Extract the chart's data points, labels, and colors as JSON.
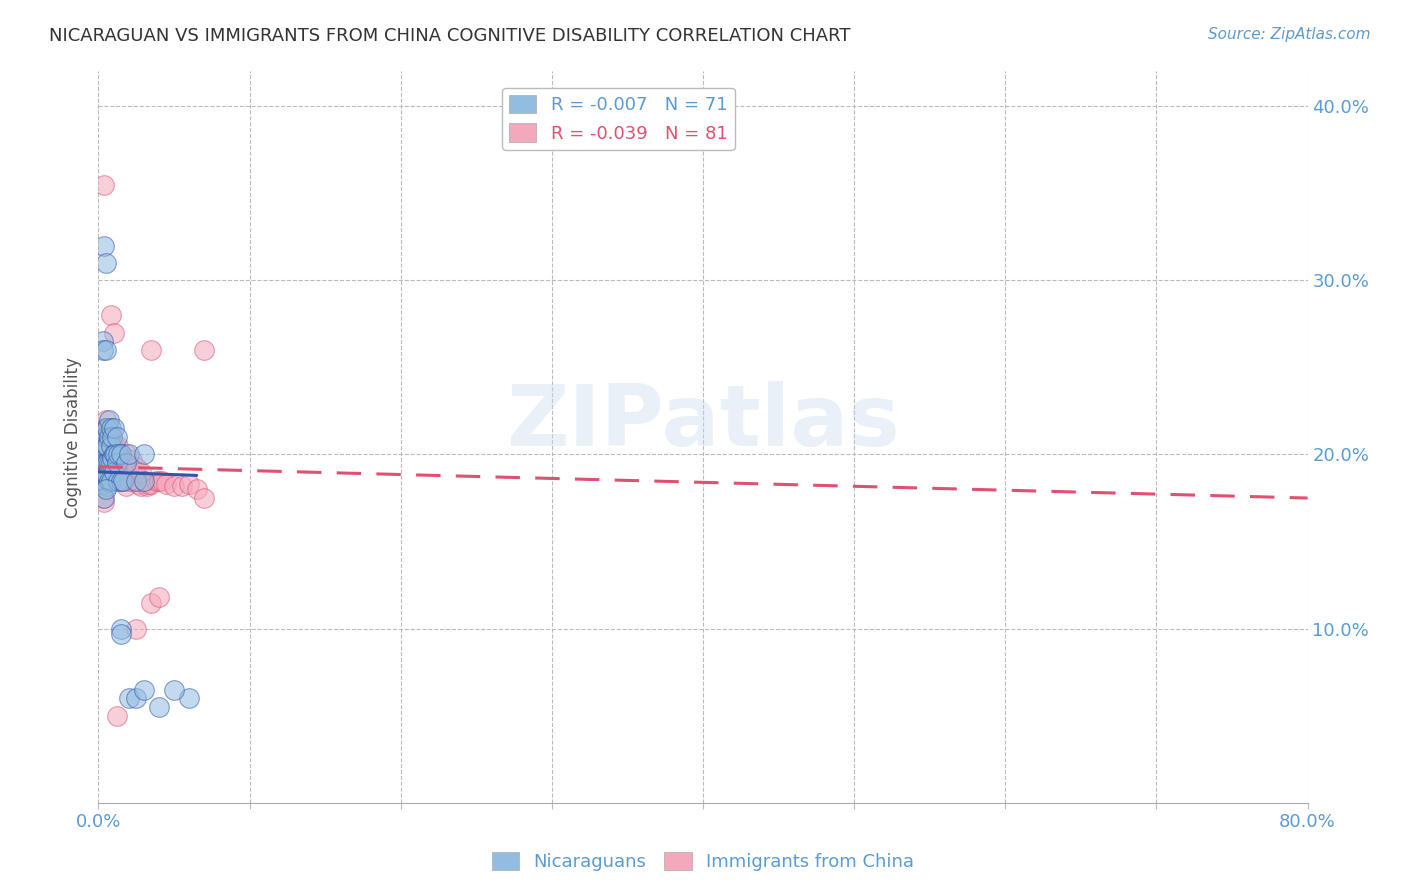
{
  "title": "NICARAGUAN VS IMMIGRANTS FROM CHINA COGNITIVE DISABILITY CORRELATION CHART",
  "source": "Source: ZipAtlas.com",
  "ylabel": "Cognitive Disability",
  "xlim": [
    0.0,
    0.8
  ],
  "ylim": [
    0.0,
    0.42
  ],
  "yticks": [
    0.1,
    0.2,
    0.3,
    0.4
  ],
  "ytick_labels": [
    "10.0%",
    "20.0%",
    "30.0%",
    "40.0%"
  ],
  "xtick_positions": [
    0.0,
    0.1,
    0.2,
    0.3,
    0.4,
    0.5,
    0.6,
    0.7,
    0.8
  ],
  "watermark": "ZIPatlas",
  "blue_color": "#92bce0",
  "pink_color": "#f4a8bb",
  "blue_line_color": "#3355aa",
  "pink_line_color": "#e05070",
  "axis_color": "#5b9bd5",
  "grid_color": "#bbbbbb",
  "title_color": "#333333",
  "blue_scatter": [
    [
      0.001,
      0.195
    ],
    [
      0.001,
      0.192
    ],
    [
      0.001,
      0.189
    ],
    [
      0.002,
      0.2
    ],
    [
      0.002,
      0.196
    ],
    [
      0.002,
      0.191
    ],
    [
      0.002,
      0.187
    ],
    [
      0.002,
      0.183
    ],
    [
      0.003,
      0.205
    ],
    [
      0.003,
      0.2
    ],
    [
      0.003,
      0.196
    ],
    [
      0.003,
      0.191
    ],
    [
      0.003,
      0.187
    ],
    [
      0.003,
      0.183
    ],
    [
      0.004,
      0.21
    ],
    [
      0.004,
      0.205
    ],
    [
      0.004,
      0.2
    ],
    [
      0.004,
      0.195
    ],
    [
      0.004,
      0.19
    ],
    [
      0.004,
      0.185
    ],
    [
      0.005,
      0.215
    ],
    [
      0.005,
      0.21
    ],
    [
      0.005,
      0.205
    ],
    [
      0.005,
      0.195
    ],
    [
      0.005,
      0.188
    ],
    [
      0.006,
      0.215
    ],
    [
      0.006,
      0.205
    ],
    [
      0.006,
      0.195
    ],
    [
      0.006,
      0.188
    ],
    [
      0.006,
      0.182
    ],
    [
      0.007,
      0.22
    ],
    [
      0.007,
      0.21
    ],
    [
      0.007,
      0.195
    ],
    [
      0.007,
      0.185
    ],
    [
      0.008,
      0.215
    ],
    [
      0.008,
      0.205
    ],
    [
      0.008,
      0.195
    ],
    [
      0.008,
      0.185
    ],
    [
      0.009,
      0.21
    ],
    [
      0.009,
      0.198
    ],
    [
      0.01,
      0.215
    ],
    [
      0.01,
      0.2
    ],
    [
      0.01,
      0.19
    ],
    [
      0.011,
      0.2
    ],
    [
      0.012,
      0.21
    ],
    [
      0.012,
      0.195
    ],
    [
      0.013,
      0.2
    ],
    [
      0.013,
      0.185
    ],
    [
      0.015,
      0.2
    ],
    [
      0.015,
      0.185
    ],
    [
      0.016,
      0.185
    ],
    [
      0.018,
      0.195
    ],
    [
      0.02,
      0.2
    ],
    [
      0.025,
      0.185
    ],
    [
      0.03,
      0.2
    ],
    [
      0.03,
      0.185
    ],
    [
      0.003,
      0.265
    ],
    [
      0.003,
      0.26
    ],
    [
      0.004,
      0.32
    ],
    [
      0.005,
      0.31
    ],
    [
      0.005,
      0.26
    ],
    [
      0.004,
      0.175
    ],
    [
      0.005,
      0.18
    ],
    [
      0.015,
      0.1
    ],
    [
      0.015,
      0.097
    ],
    [
      0.02,
      0.06
    ],
    [
      0.025,
      0.06
    ],
    [
      0.03,
      0.065
    ],
    [
      0.06,
      0.06
    ],
    [
      0.04,
      0.055
    ],
    [
      0.05,
      0.065
    ]
  ],
  "pink_scatter": [
    [
      0.001,
      0.195
    ],
    [
      0.001,
      0.19
    ],
    [
      0.001,
      0.185
    ],
    [
      0.002,
      0.2
    ],
    [
      0.002,
      0.196
    ],
    [
      0.002,
      0.192
    ],
    [
      0.003,
      0.205
    ],
    [
      0.003,
      0.2
    ],
    [
      0.003,
      0.195
    ],
    [
      0.004,
      0.215
    ],
    [
      0.004,
      0.205
    ],
    [
      0.004,
      0.198
    ],
    [
      0.005,
      0.22
    ],
    [
      0.005,
      0.215
    ],
    [
      0.005,
      0.205
    ],
    [
      0.006,
      0.215
    ],
    [
      0.006,
      0.205
    ],
    [
      0.007,
      0.215
    ],
    [
      0.007,
      0.207
    ],
    [
      0.008,
      0.21
    ],
    [
      0.008,
      0.205
    ],
    [
      0.008,
      0.195
    ],
    [
      0.009,
      0.21
    ],
    [
      0.009,
      0.2
    ],
    [
      0.01,
      0.205
    ],
    [
      0.01,
      0.195
    ],
    [
      0.011,
      0.205
    ],
    [
      0.011,
      0.195
    ],
    [
      0.012,
      0.2
    ],
    [
      0.012,
      0.19
    ],
    [
      0.013,
      0.205
    ],
    [
      0.013,
      0.195
    ],
    [
      0.014,
      0.2
    ],
    [
      0.014,
      0.19
    ],
    [
      0.015,
      0.2
    ],
    [
      0.015,
      0.19
    ],
    [
      0.016,
      0.195
    ],
    [
      0.016,
      0.185
    ],
    [
      0.017,
      0.195
    ],
    [
      0.017,
      0.185
    ],
    [
      0.018,
      0.19
    ],
    [
      0.018,
      0.182
    ],
    [
      0.019,
      0.19
    ],
    [
      0.02,
      0.19
    ],
    [
      0.021,
      0.188
    ],
    [
      0.022,
      0.19
    ],
    [
      0.023,
      0.185
    ],
    [
      0.025,
      0.188
    ],
    [
      0.026,
      0.183
    ],
    [
      0.027,
      0.185
    ],
    [
      0.028,
      0.182
    ],
    [
      0.03,
      0.185
    ],
    [
      0.032,
      0.182
    ],
    [
      0.033,
      0.183
    ],
    [
      0.035,
      0.183
    ],
    [
      0.038,
      0.185
    ],
    [
      0.04,
      0.185
    ],
    [
      0.042,
      0.185
    ],
    [
      0.045,
      0.183
    ],
    [
      0.05,
      0.182
    ],
    [
      0.055,
      0.182
    ],
    [
      0.06,
      0.183
    ],
    [
      0.065,
      0.18
    ],
    [
      0.07,
      0.175
    ],
    [
      0.004,
      0.355
    ],
    [
      0.008,
      0.28
    ],
    [
      0.01,
      0.27
    ],
    [
      0.035,
      0.26
    ],
    [
      0.07,
      0.26
    ],
    [
      0.003,
      0.175
    ],
    [
      0.004,
      0.173
    ],
    [
      0.025,
      0.1
    ],
    [
      0.035,
      0.115
    ],
    [
      0.04,
      0.118
    ],
    [
      0.012,
      0.05
    ],
    [
      0.02,
      0.185
    ],
    [
      0.015,
      0.198
    ],
    [
      0.018,
      0.2
    ],
    [
      0.022,
      0.197
    ],
    [
      0.025,
      0.193
    ],
    [
      0.028,
      0.19
    ]
  ],
  "blue_line_start_x": 0.0,
  "blue_line_end_x": 0.065,
  "blue_line_start_y": 0.19,
  "blue_line_end_y": 0.188,
  "pink_line_start_x": 0.0,
  "pink_line_end_x": 0.8,
  "pink_line_start_y": 0.193,
  "pink_line_end_y": 0.175
}
